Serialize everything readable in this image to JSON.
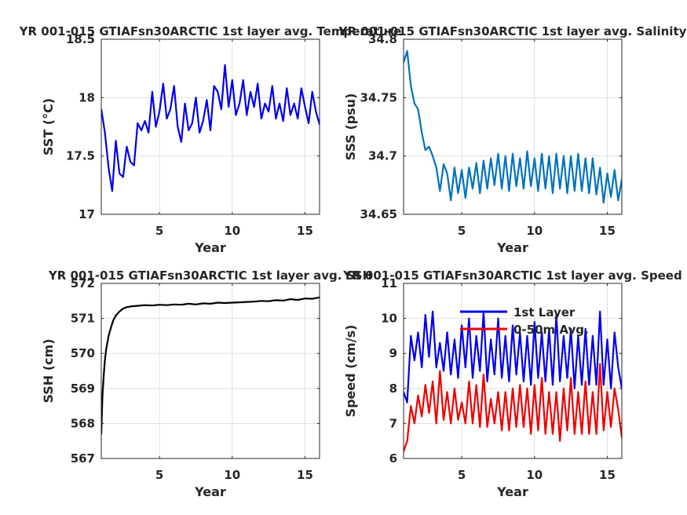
{
  "chart_data": [
    {
      "id": "sst",
      "type": "line",
      "title": "YR 001-015 GTIAFsn30ARCTIC 1st layer avg. Temperature",
      "xlabel": "Year",
      "ylabel": "SST (°C)",
      "xlim": [
        1,
        16
      ],
      "ylim": [
        17,
        18.5
      ],
      "xticks": [
        5,
        10,
        15
      ],
      "xtick_labels": [
        "5",
        "10",
        "15"
      ],
      "yticks": [
        17,
        17.5,
        18,
        18.5
      ],
      "ytick_labels": [
        "17",
        "17.5",
        "18",
        "18.5"
      ],
      "grid": true,
      "series": [
        {
          "color": "#0000ee",
          "x": [
            1.0,
            1.25,
            1.5,
            1.75,
            2.0,
            2.25,
            2.5,
            2.75,
            3.0,
            3.25,
            3.5,
            3.75,
            4.0,
            4.25,
            4.5,
            4.75,
            5.0,
            5.25,
            5.5,
            5.75,
            6.0,
            6.25,
            6.5,
            6.75,
            7.0,
            7.25,
            7.5,
            7.75,
            8.0,
            8.25,
            8.5,
            8.75,
            9.0,
            9.25,
            9.5,
            9.75,
            10.0,
            10.25,
            10.5,
            10.75,
            11.0,
            11.25,
            11.5,
            11.75,
            12.0,
            12.25,
            12.5,
            12.75,
            13.0,
            13.25,
            13.5,
            13.75,
            14.0,
            14.25,
            14.5,
            14.75,
            15.0,
            15.25,
            15.5,
            15.75,
            16.0
          ],
          "y": [
            17.9,
            17.7,
            17.4,
            17.2,
            17.63,
            17.35,
            17.32,
            17.58,
            17.45,
            17.42,
            17.78,
            17.72,
            17.8,
            17.7,
            18.05,
            17.75,
            17.88,
            18.12,
            17.82,
            17.9,
            18.1,
            17.75,
            17.62,
            17.95,
            17.72,
            17.78,
            18.0,
            17.7,
            17.8,
            17.98,
            17.72,
            18.1,
            18.05,
            17.9,
            18.28,
            17.92,
            18.15,
            17.85,
            17.95,
            18.15,
            17.85,
            18.05,
            17.92,
            18.12,
            17.82,
            17.95,
            17.88,
            18.1,
            17.82,
            17.95,
            17.8,
            18.08,
            17.85,
            17.95,
            17.82,
            18.08,
            17.92,
            17.78,
            18.05,
            17.88,
            17.77
          ]
        }
      ]
    },
    {
      "id": "sss",
      "type": "line",
      "title": "YR 001-015 GTIAFsn30ARCTIC 1st layer avg. Salinity",
      "xlabel": "Year",
      "ylabel": "SSS (psu)",
      "xlim": [
        1,
        16
      ],
      "ylim": [
        34.65,
        34.8
      ],
      "xticks": [
        5,
        10,
        15
      ],
      "xtick_labels": [
        "5",
        "10",
        "15"
      ],
      "yticks": [
        34.65,
        34.7,
        34.75,
        34.8
      ],
      "ytick_labels": [
        "34.65",
        "34.7",
        "34.75",
        "34.8"
      ],
      "grid": true,
      "series": [
        {
          "color": "#0072bd",
          "x": [
            1.0,
            1.25,
            1.5,
            1.75,
            2.0,
            2.25,
            2.5,
            2.75,
            3.0,
            3.25,
            3.5,
            3.75,
            4.0,
            4.25,
            4.5,
            4.75,
            5.0,
            5.25,
            5.5,
            5.75,
            6.0,
            6.25,
            6.5,
            6.75,
            7.0,
            7.25,
            7.5,
            7.75,
            8.0,
            8.25,
            8.5,
            8.75,
            9.0,
            9.25,
            9.5,
            9.75,
            10.0,
            10.25,
            10.5,
            10.75,
            11.0,
            11.25,
            11.5,
            11.75,
            12.0,
            12.25,
            12.5,
            12.75,
            13.0,
            13.25,
            13.5,
            13.75,
            14.0,
            14.25,
            14.5,
            14.75,
            15.0,
            15.25,
            15.5,
            15.75,
            16.0
          ],
          "y": [
            34.78,
            34.79,
            34.76,
            34.745,
            34.74,
            34.72,
            34.705,
            34.708,
            34.7,
            34.69,
            34.67,
            34.693,
            34.685,
            34.662,
            34.69,
            34.668,
            34.688,
            34.664,
            34.69,
            34.672,
            34.694,
            34.668,
            34.696,
            34.672,
            34.698,
            34.675,
            34.702,
            34.672,
            34.7,
            34.67,
            34.702,
            34.674,
            34.698,
            34.672,
            34.704,
            34.674,
            34.698,
            34.67,
            34.702,
            34.672,
            34.7,
            34.668,
            34.702,
            34.672,
            34.7,
            34.668,
            34.7,
            34.67,
            34.702,
            34.67,
            34.698,
            34.668,
            34.698,
            34.667,
            34.69,
            34.66,
            34.685,
            34.665,
            34.688,
            34.662,
            34.68
          ]
        }
      ]
    },
    {
      "id": "ssh",
      "type": "line",
      "title": "YR 001-015 GTIAFsn30ARCTIC 1st layer avg. SSH",
      "xlabel": "Year",
      "ylabel": "SSH (cm)",
      "xlim": [
        1,
        16
      ],
      "ylim": [
        567,
        572
      ],
      "xticks": [
        5,
        10,
        15
      ],
      "xtick_labels": [
        "5",
        "10",
        "15"
      ],
      "yticks": [
        567,
        568,
        569,
        570,
        571,
        572
      ],
      "ytick_labels": [
        "567",
        "568",
        "569",
        "570",
        "571",
        "572"
      ],
      "grid": true,
      "series": [
        {
          "color": "#000000",
          "x": [
            1.0,
            1.08,
            1.17,
            1.25,
            1.33,
            1.5,
            1.67,
            1.83,
            2.0,
            2.25,
            2.5,
            2.75,
            3.0,
            3.5,
            4.0,
            4.5,
            5.0,
            5.5,
            6.0,
            6.5,
            7.0,
            7.5,
            8.0,
            8.5,
            9.0,
            9.5,
            10.0,
            10.5,
            11.0,
            11.5,
            12.0,
            12.5,
            13.0,
            13.5,
            14.0,
            14.5,
            15.0,
            15.5,
            16.0
          ],
          "y": [
            567.7,
            568.8,
            569.4,
            569.8,
            570.1,
            570.5,
            570.75,
            570.95,
            571.08,
            571.2,
            571.28,
            571.32,
            571.34,
            571.36,
            571.38,
            571.37,
            571.39,
            571.38,
            571.4,
            571.39,
            571.42,
            571.4,
            571.43,
            571.42,
            571.45,
            571.44,
            571.45,
            571.46,
            571.47,
            571.48,
            571.5,
            571.49,
            571.52,
            571.51,
            571.55,
            571.53,
            571.57,
            571.56,
            571.6
          ]
        }
      ]
    },
    {
      "id": "speed",
      "type": "line",
      "title": "YR 001-015 GTIAFsn30ARCTIC 1st layer avg. Speed",
      "xlabel": "Year",
      "ylabel": "Speed (cm/s)",
      "xlim": [
        1,
        16
      ],
      "ylim": [
        6,
        11
      ],
      "xticks": [
        5,
        10,
        15
      ],
      "xtick_labels": [
        "5",
        "10",
        "15"
      ],
      "yticks": [
        6,
        7,
        8,
        9,
        10,
        11
      ],
      "ytick_labels": [
        "6",
        "7",
        "8",
        "9",
        "10",
        "11"
      ],
      "grid": true,
      "legend": "top-center",
      "series": [
        {
          "name": "1st Layer",
          "color": "#0000ee",
          "x": [
            1.0,
            1.25,
            1.5,
            1.75,
            2.0,
            2.25,
            2.5,
            2.75,
            3.0,
            3.25,
            3.5,
            3.75,
            4.0,
            4.25,
            4.5,
            4.75,
            5.0,
            5.25,
            5.5,
            5.75,
            6.0,
            6.25,
            6.5,
            6.75,
            7.0,
            7.25,
            7.5,
            7.75,
            8.0,
            8.25,
            8.5,
            8.75,
            9.0,
            9.25,
            9.5,
            9.75,
            10.0,
            10.25,
            10.5,
            10.75,
            11.0,
            11.25,
            11.5,
            11.75,
            12.0,
            12.25,
            12.5,
            12.75,
            13.0,
            13.25,
            13.5,
            13.75,
            14.0,
            14.25,
            14.5,
            14.75,
            15.0,
            15.25,
            15.5,
            15.75,
            16.0
          ],
          "y": [
            7.9,
            7.6,
            9.5,
            8.8,
            9.6,
            8.6,
            10.1,
            8.9,
            10.2,
            8.6,
            9.3,
            8.5,
            9.6,
            8.4,
            9.4,
            8.3,
            9.8,
            8.6,
            10.0,
            8.3,
            9.5,
            8.5,
            10.2,
            8.2,
            9.4,
            8.4,
            10.0,
            8.3,
            9.5,
            8.2,
            9.8,
            8.4,
            9.6,
            8.2,
            9.5,
            8.1,
            9.9,
            8.3,
            9.6,
            8.2,
            9.7,
            8.1,
            10.1,
            8.2,
            9.5,
            8.3,
            9.7,
            8.0,
            9.5,
            8.1,
            9.7,
            8.1,
            9.5,
            8.1,
            10.2,
            8.1,
            9.4,
            8.0,
            9.6,
            8.6,
            8.0
          ]
        },
        {
          "name": "0-50m Avg.",
          "color": "#ee0000",
          "x": [
            1.0,
            1.25,
            1.5,
            1.75,
            2.0,
            2.25,
            2.5,
            2.75,
            3.0,
            3.25,
            3.5,
            3.75,
            4.0,
            4.25,
            4.5,
            4.75,
            5.0,
            5.25,
            5.5,
            5.75,
            6.0,
            6.25,
            6.5,
            6.75,
            7.0,
            7.25,
            7.5,
            7.75,
            8.0,
            8.25,
            8.5,
            8.75,
            9.0,
            9.25,
            9.5,
            9.75,
            10.0,
            10.25,
            10.5,
            10.75,
            11.0,
            11.25,
            11.5,
            11.75,
            12.0,
            12.25,
            12.5,
            12.75,
            13.0,
            13.25,
            13.5,
            13.75,
            14.0,
            14.25,
            14.5,
            14.75,
            15.0,
            15.25,
            15.5,
            15.75,
            16.0
          ],
          "y": [
            6.2,
            6.5,
            7.5,
            7.0,
            7.8,
            7.2,
            8.1,
            7.3,
            8.2,
            7.0,
            8.5,
            7.1,
            7.9,
            7.0,
            8.0,
            7.1,
            7.6,
            7.0,
            8.2,
            7.0,
            8.1,
            6.9,
            8.4,
            6.9,
            7.7,
            7.0,
            7.9,
            6.8,
            7.9,
            6.8,
            8.0,
            6.9,
            8.1,
            6.9,
            8.0,
            6.7,
            8.1,
            6.8,
            8.3,
            6.7,
            7.9,
            6.7,
            7.9,
            6.5,
            8.0,
            6.8,
            8.3,
            6.7,
            7.9,
            6.7,
            8.2,
            6.7,
            7.9,
            6.7,
            8.7,
            6.8,
            7.9,
            6.9,
            8.0,
            7.4,
            6.6
          ]
        }
      ]
    }
  ]
}
